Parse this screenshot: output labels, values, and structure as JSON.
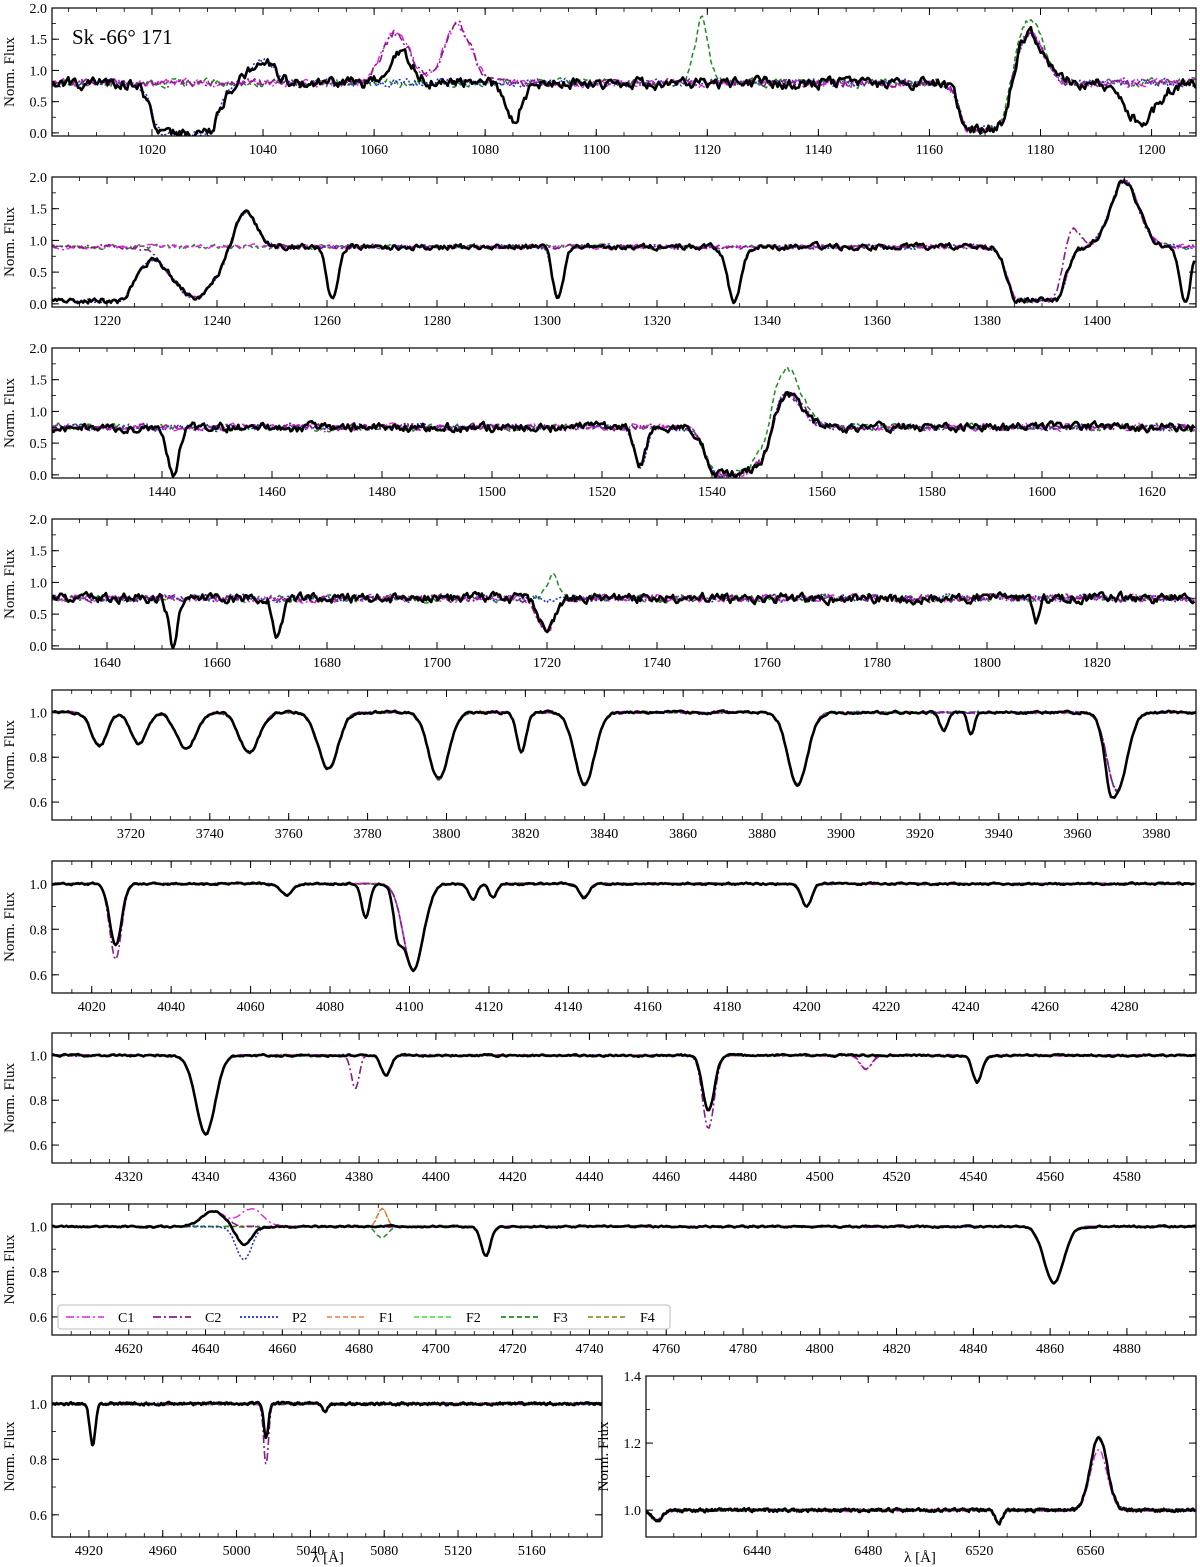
{
  "figure": {
    "star_label": "Sk -66° 171",
    "ylabel": "Norm. Flux",
    "xlabel": "λ [Å]"
  },
  "colors": {
    "observed": "#000000",
    "C1": "#e61ee6",
    "C2": "#8b1a8b",
    "P2": "#1f2fd6",
    "F1": "#f07d3c",
    "F2": "#3ce03c",
    "F3": "#1e8c1e",
    "F4": "#8a7a10"
  },
  "legend": {
    "placement": "lower-left of panel 8",
    "entries": [
      {
        "key": "C1",
        "label": "C1",
        "style": "dashdot"
      },
      {
        "key": "C2",
        "label": "C2",
        "style": "dashdot"
      },
      {
        "key": "P2",
        "label": "P2",
        "style": "dotted"
      },
      {
        "key": "F1",
        "label": "F1",
        "style": "dashed"
      },
      {
        "key": "F2",
        "label": "F2",
        "style": "dashed"
      },
      {
        "key": "F3",
        "label": "F3",
        "style": "dashed"
      },
      {
        "key": "F4",
        "label": "F4",
        "style": "dashed"
      }
    ]
  },
  "chart_data": [
    {
      "type": "line",
      "panel": 1,
      "xlim": [
        1002,
        1208
      ],
      "ylim": [
        -0.05,
        2.0
      ],
      "xticks": [
        1020,
        1040,
        1060,
        1080,
        1100,
        1120,
        1140,
        1160,
        1180,
        1200
      ],
      "yticks": [
        0.0,
        0.5,
        1.0,
        1.5,
        2.0
      ],
      "ytick_labels": [
        "0.0",
        "0.5",
        "1.0",
        "1.5",
        "2.0"
      ],
      "continuum": 0.8,
      "series_list": [
        "obs",
        "C1",
        "C2",
        "P2",
        "F3"
      ],
      "features": [
        {
          "c": 1026,
          "w": 4,
          "d": 0.8,
          "ms": [
            "obs",
            "P2"
          ],
          "shape": "trough"
        },
        {
          "c": 1040,
          "w": 2,
          "d": -0.4,
          "ms": [
            "obs",
            "P2"
          ]
        },
        {
          "c": 1064,
          "w": 2.5,
          "d": -0.8,
          "ms": [
            "C2",
            "C1"
          ]
        },
        {
          "c": 1065,
          "w": 2,
          "d": -0.45,
          "ms": [
            "obs"
          ]
        },
        {
          "c": 1075,
          "w": 2.5,
          "d": -0.9,
          "ms": [
            "C2",
            "C1"
          ]
        },
        {
          "c": 1085,
          "w": 1.5,
          "d": 0.6,
          "ms": [
            "obs"
          ]
        },
        {
          "c": 1119,
          "w": 1.2,
          "d": -1.0,
          "ms": [
            "F3"
          ]
        },
        {
          "c": 1170,
          "w": 3,
          "d": 0.75,
          "ms": [
            "obs",
            "C1",
            "C2",
            "P2",
            "F3"
          ],
          "shape": "trough"
        },
        {
          "c": 1178,
          "w": 2.5,
          "d": -1.0,
          "ms": [
            "F3"
          ]
        },
        {
          "c": 1178,
          "w": 2.5,
          "d": -0.8,
          "ms": [
            "obs",
            "C1",
            "C2",
            "P2"
          ]
        },
        {
          "c": 1198,
          "w": 3,
          "d": 0.6,
          "ms": [
            "obs"
          ]
        }
      ],
      "noise_amp": 0.15
    },
    {
      "type": "line",
      "panel": 2,
      "xlim": [
        1210,
        1418
      ],
      "ylim": [
        -0.05,
        2.0
      ],
      "xticks": [
        1220,
        1240,
        1260,
        1280,
        1300,
        1320,
        1340,
        1360,
        1380,
        1400
      ],
      "yticks": [
        0.0,
        0.5,
        1.0,
        1.5,
        2.0
      ],
      "ytick_labels": [
        "0.0",
        "0.5",
        "1.0",
        "1.5",
        "2.0"
      ],
      "continuum": 0.9,
      "series_list": [
        "obs",
        "C1",
        "C2",
        "P2",
        "F3"
      ],
      "features": [
        {
          "c": 1216,
          "w": 6,
          "d": 0.85,
          "ms": [
            "obs",
            "P2"
          ],
          "shape": "trough"
        },
        {
          "c": 1236,
          "w": 4,
          "d": 0.8,
          "ms": [
            "obs",
            "C2",
            "P2"
          ]
        },
        {
          "c": 1245,
          "w": 2,
          "d": -0.6,
          "ms": [
            "obs",
            "C2",
            "P2"
          ]
        },
        {
          "c": 1261,
          "w": 1,
          "d": 0.85,
          "ms": [
            "obs"
          ]
        },
        {
          "c": 1302,
          "w": 1,
          "d": 0.8,
          "ms": [
            "obs",
            "P2"
          ]
        },
        {
          "c": 1334,
          "w": 1.2,
          "d": 0.85,
          "ms": [
            "obs",
            "P2"
          ]
        },
        {
          "c": 1389,
          "w": 3.5,
          "d": 0.85,
          "ms": [
            "obs",
            "C1",
            "C2",
            "P2",
            "F3"
          ],
          "shape": "trough"
        },
        {
          "c": 1395,
          "w": 1.5,
          "d": -0.5,
          "ms": [
            "C2"
          ]
        },
        {
          "c": 1405,
          "w": 2.5,
          "d": -1.05,
          "ms": [
            "obs",
            "C1",
            "C2",
            "P2",
            "F3"
          ]
        },
        {
          "c": 1416,
          "w": 1,
          "d": 0.9,
          "ms": [
            "obs"
          ]
        }
      ],
      "noise_amp": 0.08
    },
    {
      "type": "line",
      "panel": 3,
      "xlim": [
        1420,
        1628
      ],
      "ylim": [
        -0.05,
        2.0
      ],
      "xticks": [
        1440,
        1460,
        1480,
        1500,
        1520,
        1540,
        1560,
        1580,
        1600,
        1620
      ],
      "yticks": [
        0.0,
        0.5,
        1.0,
        1.5,
        2.0
      ],
      "ytick_labels": [
        "0.0",
        "0.5",
        "1.0",
        "1.5",
        "2.0"
      ],
      "continuum": 0.75,
      "series_list": [
        "obs",
        "C1",
        "C2",
        "P2",
        "F3"
      ],
      "features": [
        {
          "c": 1442,
          "w": 1,
          "d": 0.75,
          "ms": [
            "obs"
          ]
        },
        {
          "c": 1527,
          "w": 1,
          "d": 0.6,
          "ms": [
            "obs",
            "P2"
          ]
        },
        {
          "c": 1545,
          "w": 4,
          "d": 0.75,
          "ms": [
            "obs",
            "C1",
            "C2",
            "P2",
            "F3"
          ],
          "shape": "trough"
        },
        {
          "c": 1553,
          "w": 3,
          "d": -1.0,
          "ms": [
            "F3"
          ]
        },
        {
          "c": 1553,
          "w": 3,
          "d": -0.6,
          "ms": [
            "obs",
            "C1",
            "C2",
            "P2"
          ]
        }
      ],
      "noise_amp": 0.12
    },
    {
      "type": "line",
      "panel": 4,
      "xlim": [
        1630,
        1838
      ],
      "ylim": [
        -0.05,
        2.0
      ],
      "xticks": [
        1640,
        1660,
        1680,
        1700,
        1720,
        1740,
        1760,
        1780,
        1800,
        1820
      ],
      "yticks": [
        0.0,
        0.5,
        1.0,
        1.5,
        2.0
      ],
      "ytick_labels": [
        "0.0",
        "0.5",
        "1.0",
        "1.5",
        "2.0"
      ],
      "continuum": 0.75,
      "series_list": [
        "obs",
        "C1",
        "C2",
        "P2",
        "F3"
      ],
      "features": [
        {
          "c": 1652,
          "w": 0.8,
          "d": 0.75,
          "ms": [
            "obs"
          ]
        },
        {
          "c": 1671,
          "w": 0.8,
          "d": 0.6,
          "ms": [
            "obs"
          ]
        },
        {
          "c": 1720,
          "w": 1.5,
          "d": 0.5,
          "ms": [
            "obs",
            "C1",
            "C2"
          ]
        },
        {
          "c": 1721,
          "w": 1,
          "d": -0.4,
          "ms": [
            "F3"
          ]
        },
        {
          "c": 1809,
          "w": 0.6,
          "d": 0.4,
          "ms": [
            "obs"
          ]
        }
      ],
      "noise_amp": 0.13
    },
    {
      "type": "line",
      "panel": 5,
      "xlim": [
        3700,
        3990
      ],
      "ylim": [
        0.52,
        1.1
      ],
      "xticks": [
        3720,
        3740,
        3760,
        3780,
        3800,
        3820,
        3840,
        3860,
        3880,
        3900,
        3920,
        3940,
        3960,
        3980
      ],
      "yticks": [
        0.6,
        0.8,
        1.0
      ],
      "ytick_labels": [
        "0.6",
        "0.8",
        "1.0"
      ],
      "continuum": 1.0,
      "series_list": [
        "obs",
        "C1",
        "C2",
        "P2",
        "F1",
        "F2",
        "F3",
        "F4"
      ],
      "features": [
        {
          "c": 3712,
          "w": 2,
          "d": 0.15,
          "ms": [
            "all"
          ]
        },
        {
          "c": 3722,
          "w": 2,
          "d": 0.14,
          "ms": [
            "all"
          ]
        },
        {
          "c": 3734,
          "w": 2.5,
          "d": 0.16,
          "ms": [
            "all"
          ]
        },
        {
          "c": 3750,
          "w": 2.5,
          "d": 0.18,
          "ms": [
            "all"
          ]
        },
        {
          "c": 3770,
          "w": 2.5,
          "d": 0.25,
          "ms": [
            "all"
          ]
        },
        {
          "c": 3798,
          "w": 2.5,
          "d": 0.3,
          "ms": [
            "all"
          ]
        },
        {
          "c": 3819,
          "w": 1.2,
          "d": 0.18,
          "ms": [
            "all"
          ]
        },
        {
          "c": 3835,
          "w": 2.5,
          "d": 0.32,
          "ms": [
            "all"
          ]
        },
        {
          "c": 3889,
          "w": 2.5,
          "d": 0.32,
          "ms": [
            "all"
          ]
        },
        {
          "c": 3926,
          "w": 1,
          "d": 0.08,
          "ms": [
            "obs"
          ]
        },
        {
          "c": 3933,
          "w": 0.8,
          "d": 0.1,
          "ms": [
            "obs"
          ]
        },
        {
          "c": 3968,
          "w": 1,
          "d": 0.1,
          "ms": [
            "obs"
          ]
        },
        {
          "c": 3970,
          "w": 2.5,
          "d": 0.35,
          "ms": [
            "all"
          ]
        }
      ],
      "noise_amp": 0.01
    },
    {
      "type": "line",
      "panel": 6,
      "xlim": [
        4010,
        4298
      ],
      "ylim": [
        0.52,
        1.1
      ],
      "xticks": [
        4020,
        4040,
        4060,
        4080,
        4100,
        4120,
        4140,
        4160,
        4180,
        4200,
        4220,
        4240,
        4260,
        4280
      ],
      "yticks": [
        0.6,
        0.8,
        1.0
      ],
      "ytick_labels": [
        "0.6",
        "0.8",
        "1.0"
      ],
      "continuum": 1.0,
      "series_list": [
        "obs",
        "C1",
        "C2",
        "P2",
        "F1",
        "F2",
        "F3",
        "F4"
      ],
      "features": [
        {
          "c": 4026,
          "w": 1.5,
          "d": 0.05,
          "ms": [
            "all"
          ]
        },
        {
          "c": 4026,
          "w": 1.5,
          "d": 0.28,
          "ms": [
            "C2"
          ]
        },
        {
          "c": 4026,
          "w": 1.5,
          "d": 0.22,
          "ms": [
            "obs",
            "C1",
            "P2",
            "F1",
            "F2",
            "F3",
            "F4"
          ]
        },
        {
          "c": 4069,
          "w": 1.5,
          "d": 0.05,
          "ms": [
            "all"
          ]
        },
        {
          "c": 4089,
          "w": 1,
          "d": 0.15,
          "ms": [
            "obs",
            "P2"
          ]
        },
        {
          "c": 4097,
          "w": 1,
          "d": 0.15,
          "ms": [
            "obs"
          ]
        },
        {
          "c": 4101,
          "w": 2.5,
          "d": 0.38,
          "ms": [
            "all"
          ]
        },
        {
          "c": 4116,
          "w": 1,
          "d": 0.07,
          "ms": [
            "all"
          ]
        },
        {
          "c": 4121,
          "w": 1,
          "d": 0.06,
          "ms": [
            "all"
          ]
        },
        {
          "c": 4144,
          "w": 1.2,
          "d": 0.06,
          "ms": [
            "all"
          ]
        },
        {
          "c": 4200,
          "w": 1.2,
          "d": 0.1,
          "ms": [
            "all"
          ]
        }
      ],
      "noise_amp": 0.008
    },
    {
      "type": "line",
      "panel": 7,
      "xlim": [
        4300,
        4598
      ],
      "ylim": [
        0.52,
        1.1
      ],
      "xticks": [
        4320,
        4340,
        4360,
        4380,
        4400,
        4420,
        4440,
        4460,
        4480,
        4500,
        4520,
        4540,
        4560,
        4580
      ],
      "yticks": [
        0.6,
        0.8,
        1.0
      ],
      "ytick_labels": [
        "0.6",
        "0.8",
        "1.0"
      ],
      "continuum": 1.0,
      "series_list": [
        "obs",
        "C1",
        "C2",
        "P2",
        "F1",
        "F2",
        "F3",
        "F4"
      ],
      "features": [
        {
          "c": 4340,
          "w": 2.5,
          "d": 0.35,
          "ms": [
            "all"
          ]
        },
        {
          "c": 4379,
          "w": 1,
          "d": 0.15,
          "ms": [
            "C2"
          ]
        },
        {
          "c": 4387,
          "w": 1.2,
          "d": 0.09,
          "ms": [
            "all"
          ]
        },
        {
          "c": 4471,
          "w": 1.5,
          "d": 0.33,
          "ms": [
            "C2"
          ]
        },
        {
          "c": 4471,
          "w": 1.5,
          "d": 0.25,
          "ms": [
            "obs",
            "C1",
            "P2",
            "F1",
            "F2",
            "F3",
            "F4"
          ]
        },
        {
          "c": 4512,
          "w": 1.5,
          "d": 0.06,
          "ms": [
            "C1",
            "C2"
          ]
        },
        {
          "c": 4541,
          "w": 1.2,
          "d": 0.12,
          "ms": [
            "all"
          ]
        }
      ],
      "noise_amp": 0.008
    },
    {
      "type": "line",
      "panel": 8,
      "xlim": [
        4600,
        4898
      ],
      "ylim": [
        0.52,
        1.1
      ],
      "xticks": [
        4620,
        4640,
        4660,
        4680,
        4700,
        4720,
        4740,
        4760,
        4780,
        4800,
        4820,
        4840,
        4860,
        4880
      ],
      "yticks": [
        0.6,
        0.8,
        1.0
      ],
      "ytick_labels": [
        "0.6",
        "0.8",
        "1.0"
      ],
      "continuum": 1.0,
      "series_list": [
        "obs",
        "C1",
        "C2",
        "P2",
        "F1",
        "F2",
        "F3",
        "F4"
      ],
      "features": [
        {
          "c": 4642,
          "w": 3,
          "d": -0.07,
          "ms": [
            "obs",
            "C1",
            "C2"
          ]
        },
        {
          "c": 4650,
          "w": 2,
          "d": 0.08,
          "ms": [
            "obs"
          ]
        },
        {
          "c": 4650,
          "w": 2,
          "d": 0.15,
          "ms": [
            "P2"
          ]
        },
        {
          "c": 4652,
          "w": 3,
          "d": -0.08,
          "ms": [
            "C1"
          ]
        },
        {
          "c": 4686,
          "w": 1.5,
          "d": 0.05,
          "ms": [
            "F3"
          ]
        },
        {
          "c": 4686,
          "w": 1.2,
          "d": -0.08,
          "ms": [
            "F4",
            "F1"
          ]
        },
        {
          "c": 4713,
          "w": 1.2,
          "d": 0.13,
          "ms": [
            "all"
          ]
        },
        {
          "c": 4861,
          "w": 2.5,
          "d": 0.25,
          "ms": [
            "all"
          ]
        }
      ],
      "noise_amp": 0.007
    },
    {
      "type": "line",
      "panel": 9,
      "xlim": [
        4900,
        5198
      ],
      "ylim": [
        0.52,
        1.1
      ],
      "xticks": [
        4920,
        4960,
        5000,
        5040,
        5080,
        5120,
        5160
      ],
      "yticks": [
        0.6,
        0.8,
        1.0
      ],
      "ytick_labels": [
        "0.6",
        "0.8",
        "1.0"
      ],
      "continuum": 1.0,
      "series_list": [
        "obs",
        "C1",
        "C2",
        "P2",
        "F1",
        "F2",
        "F3",
        "F4"
      ],
      "features": [
        {
          "c": 4922,
          "w": 1.5,
          "d": 0.15,
          "ms": [
            "all"
          ]
        },
        {
          "c": 5016,
          "w": 1.3,
          "d": 0.22,
          "ms": [
            "C2"
          ]
        },
        {
          "c": 5016,
          "w": 1.3,
          "d": 0.12,
          "ms": [
            "obs",
            "C1",
            "P2",
            "F1",
            "F2",
            "F3",
            "F4"
          ]
        },
        {
          "c": 5048,
          "w": 1.2,
          "d": 0.03,
          "ms": [
            "all"
          ]
        }
      ],
      "noise_amp": 0.008
    },
    {
      "type": "line",
      "panel": 10,
      "xlim": [
        6400,
        6598
      ],
      "ylim": [
        0.92,
        1.4
      ],
      "xticks": [
        6440,
        6480,
        6520,
        6560
      ],
      "yticks": [
        1.0,
        1.2,
        1.4
      ],
      "ytick_labels": [
        "1.0",
        "1.2",
        "1.4"
      ],
      "continuum": 1.0,
      "series_list": [
        "obs",
        "C1",
        "C2",
        "P2",
        "F1",
        "F2",
        "F3",
        "F4"
      ],
      "features": [
        {
          "c": 6404,
          "w": 2,
          "d": 0.03,
          "ms": [
            "all"
          ]
        },
        {
          "c": 6527,
          "w": 1.2,
          "d": 0.04,
          "ms": [
            "all"
          ]
        },
        {
          "c": 6563,
          "w": 3,
          "d": -0.22,
          "ms": [
            "obs",
            "P2",
            "F1",
            "F2",
            "F3",
            "F4",
            "C2"
          ]
        },
        {
          "c": 6563,
          "w": 3,
          "d": -0.18,
          "ms": [
            "C1"
          ]
        }
      ],
      "noise_amp": 0.008
    }
  ]
}
